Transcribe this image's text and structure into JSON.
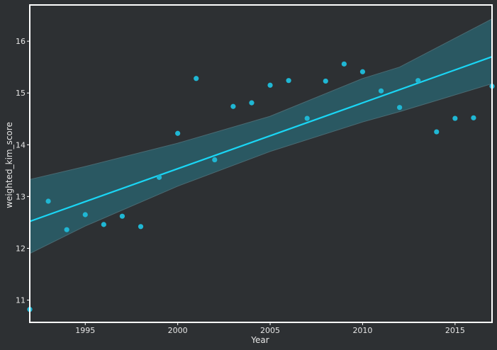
{
  "chart_data": {
    "type": "scatter",
    "title": "",
    "xlabel": "Year",
    "ylabel": "weighted_kim_score",
    "xlim": [
      1992,
      2017
    ],
    "ylim": [
      10.57,
      16.7
    ],
    "xticks": [
      1995,
      2000,
      2005,
      2010,
      2015
    ],
    "yticks": [
      11,
      12,
      13,
      14,
      15,
      16
    ],
    "grid": false,
    "legend": "none",
    "points": {
      "x": [
        1992,
        1993,
        1994,
        1995,
        1996,
        1997,
        1998,
        1999,
        2000,
        2001,
        2002,
        2003,
        2004,
        2005,
        2006,
        2007,
        2008,
        2009,
        2010,
        2011,
        2012,
        2013,
        2014,
        2015,
        2016,
        2017
      ],
      "y": [
        10.82,
        12.91,
        12.36,
        12.65,
        12.46,
        12.62,
        12.42,
        13.37,
        14.22,
        15.28,
        13.71,
        14.74,
        14.81,
        15.15,
        15.24,
        14.51,
        15.23,
        15.56,
        15.41,
        15.04,
        14.72,
        15.24,
        14.25,
        14.51,
        14.52,
        15.13
      ]
    },
    "regression": {
      "x": [
        1992,
        2017
      ],
      "y": [
        12.52,
        15.7
      ]
    },
    "confidence_band": {
      "x": [
        1992,
        1995,
        2000,
        2005,
        2010,
        2012,
        2017
      ],
      "upper": [
        13.33,
        13.58,
        14.03,
        14.55,
        15.28,
        15.5,
        16.43
      ],
      "lower": [
        11.9,
        12.43,
        13.2,
        13.87,
        14.44,
        14.64,
        15.18
      ]
    },
    "colors": {
      "background": "#2d3033",
      "points": "#1fb7d4",
      "line": "#1ad6f5",
      "band": "#2a5862",
      "band_edge": "#4a6a72",
      "axes": "#ffffff",
      "text": "#e6e6e6"
    }
  }
}
